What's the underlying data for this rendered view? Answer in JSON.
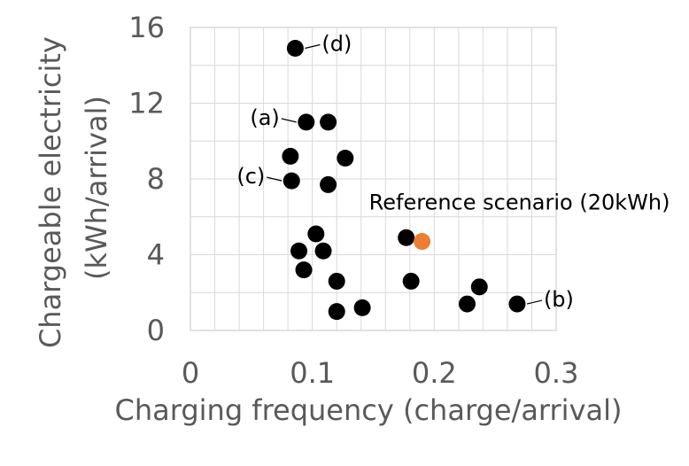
{
  "chart_data": {
    "type": "scatter",
    "title": "",
    "xlabel": "Charging frequency (charge/arrival)",
    "ylabel_lines": [
      "Chargeable electricity",
      "(kWh/arrival)"
    ],
    "xlim": [
      0,
      0.3
    ],
    "ylim": [
      0,
      16
    ],
    "x_major_ticks": [
      0,
      0.1,
      0.2,
      0.3
    ],
    "x_tick_labels": [
      "0",
      "0.1",
      "0.2",
      "0.3"
    ],
    "y_major_ticks": [
      0,
      4,
      8,
      12,
      16
    ],
    "y_tick_labels": [
      "0",
      "4",
      "8",
      "12",
      "16"
    ],
    "x_minor_step": 0.02,
    "y_minor_step": 2,
    "grid": true,
    "legend": "none",
    "marker_color": "#000000",
    "highlight_color": "#ED7D31",
    "points": [
      {
        "x": 0.086,
        "y": 14.9
      },
      {
        "x": 0.095,
        "y": 11.0
      },
      {
        "x": 0.113,
        "y": 11.0
      },
      {
        "x": 0.082,
        "y": 9.2
      },
      {
        "x": 0.127,
        "y": 9.1
      },
      {
        "x": 0.083,
        "y": 7.9
      },
      {
        "x": 0.113,
        "y": 7.7
      },
      {
        "x": 0.103,
        "y": 5.1
      },
      {
        "x": 0.089,
        "y": 4.2
      },
      {
        "x": 0.109,
        "y": 4.2
      },
      {
        "x": 0.093,
        "y": 3.2
      },
      {
        "x": 0.12,
        "y": 2.6
      },
      {
        "x": 0.177,
        "y": 4.9
      },
      {
        "x": 0.181,
        "y": 2.6
      },
      {
        "x": 0.12,
        "y": 1.0
      },
      {
        "x": 0.141,
        "y": 1.2
      },
      {
        "x": 0.227,
        "y": 1.4
      },
      {
        "x": 0.237,
        "y": 2.3
      },
      {
        "x": 0.268,
        "y": 1.4
      },
      {
        "x": 0.19,
        "y": 4.7,
        "highlight": true
      }
    ],
    "annotations": [
      {
        "text": "(d)",
        "x": 0.086,
        "y": 14.9,
        "side": "right"
      },
      {
        "text": "(a)",
        "x": 0.095,
        "y": 11.0,
        "side": "left"
      },
      {
        "text": "(c)",
        "x": 0.083,
        "y": 7.9,
        "side": "left"
      },
      {
        "text": "(b)",
        "x": 0.268,
        "y": 1.4,
        "side": "right"
      },
      {
        "text": "Reference scenario (20kWh)",
        "x": 0.19,
        "y": 4.7,
        "side": "above"
      }
    ]
  }
}
